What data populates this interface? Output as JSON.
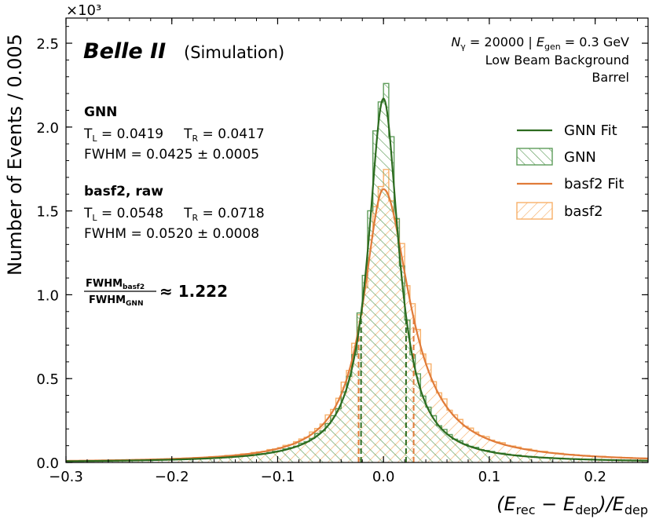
{
  "chart_data": {
    "type": "histogram",
    "title": "",
    "multiplier_label": "×10³",
    "xlabel": {
      "prefix": "(E",
      "rec": "rec",
      "minus": " − E",
      "dep": "dep",
      "div": ")/E",
      "dep2": "dep"
    },
    "ylabel": "Number of Events / 0.005",
    "xlim": [
      -0.3,
      0.25
    ],
    "ylim": [
      0,
      2.65
    ],
    "y_units": "thousands of events",
    "x_ticks": [
      -0.3,
      -0.2,
      -0.1,
      0.0,
      0.1,
      0.2
    ],
    "x_tick_labels": [
      "−0.3",
      "−0.2",
      "−0.1",
      "0.0",
      "0.1",
      "0.2"
    ],
    "y_ticks": [
      0.0,
      0.5,
      1.0,
      1.5,
      2.0,
      2.5
    ],
    "y_tick_labels": [
      "0.0",
      "0.5",
      "1.0",
      "1.5",
      "2.0",
      "2.5"
    ],
    "bin_width": 0.005,
    "bin_range": [
      -0.3,
      0.25
    ],
    "series": [
      {
        "name": "GNN",
        "kind": "hist",
        "color": "#5e9c5a",
        "hatch": "\\\\",
        "peak": 2.27,
        "tau_left": 0.0419,
        "tau_right": 0.0417
      },
      {
        "name": "basf2",
        "kind": "hist",
        "color": "#f7b06a",
        "hatch": "//",
        "peak": 1.7,
        "tau_left": 0.0548,
        "tau_right": 0.0718
      },
      {
        "name": "GNN Fit",
        "kind": "line",
        "color": "#2c6b1f",
        "peak": 2.17,
        "mu": 0.0,
        "tau_left": 0.0419,
        "tau_right": 0.0417,
        "fwhm_lines": [
          -0.0212,
          0.0213
        ]
      },
      {
        "name": "basf2 Fit",
        "kind": "line",
        "color": "#e07b39",
        "peak": 1.63,
        "mu": 0.0,
        "tau_left": 0.0548,
        "tau_right": 0.0718,
        "fwhm_lines": [
          -0.0235,
          0.0285
        ]
      }
    ],
    "legend": {
      "position": "center-right",
      "entries": [
        "GNN Fit",
        "GNN",
        "basf2 Fit",
        "basf2"
      ]
    },
    "experiment": {
      "name": "Belle II",
      "tag": "(Simulation)"
    },
    "conditions": {
      "line1_a": "N",
      "line1_a_sub": "γ",
      "line1_b": " = 20000 | ",
      "line1_c": "E",
      "line1_c_sub": "gen",
      "line1_d": " = 0.3 GeV",
      "line2": "Low Beam Background",
      "line3": "Barrel"
    },
    "annotations": {
      "gnn": {
        "title": "GNN",
        "tl": "0.0419",
        "tr": "0.0417",
        "fwhm": "0.0425 ± 0.0005"
      },
      "basf2": {
        "title": "basf2, raw",
        "tl": "0.0548",
        "tr": "0.0718",
        "fwhm": "0.0520 ± 0.0008"
      },
      "ratio": {
        "num_main": "FWHM",
        "num_sub": "basf2",
        "den_main": "FWHM",
        "den_sub": "GNN",
        "value": "≈ 1.222"
      }
    }
  }
}
